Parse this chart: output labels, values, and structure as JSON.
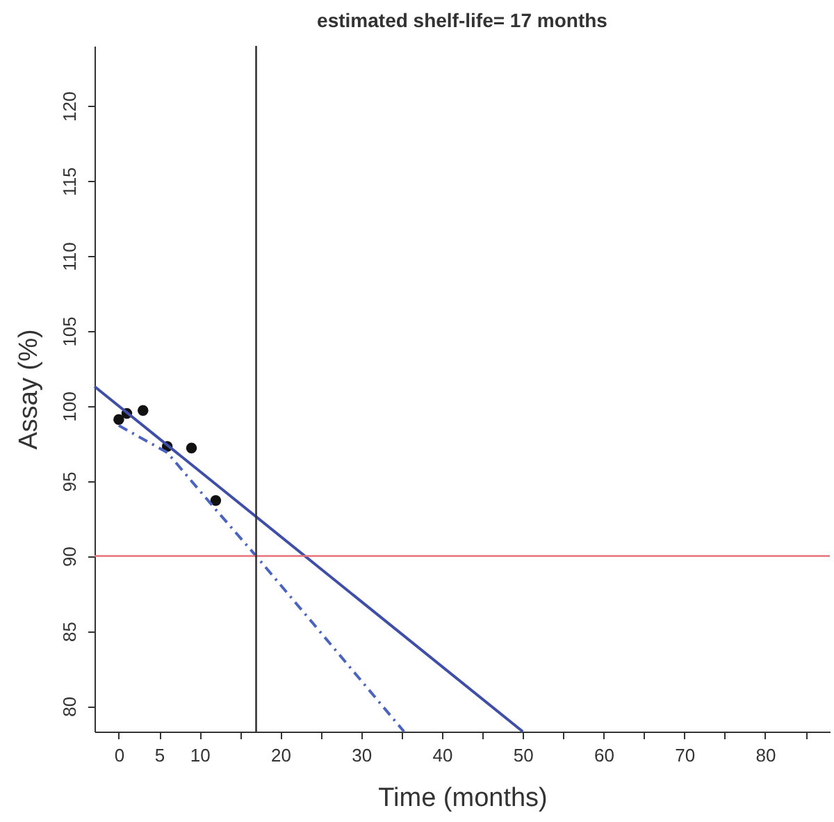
{
  "chart_data": {
    "type": "scatter",
    "title": "estimated shelf-life= 17 months",
    "xlabel": "Time (months)",
    "ylabel": "Assay (%)",
    "xlim": [
      -3,
      88
    ],
    "ylim": [
      78.3,
      124
    ],
    "xticks": [
      0,
      5,
      10,
      {
        "value": 15,
        "label": null
      },
      20,
      {
        "value": 25,
        "label": null
      },
      30,
      {
        "value": 35,
        "label": null
      },
      40,
      {
        "value": 45,
        "label": null
      },
      50,
      {
        "value": 55,
        "label": null
      },
      60,
      {
        "value": 65,
        "label": null
      },
      70,
      {
        "value": 75,
        "label": null
      },
      80,
      {
        "value": 85,
        "label": null
      }
    ],
    "yticks": [
      80,
      85,
      90,
      95,
      100,
      105,
      110,
      115,
      120
    ],
    "grid": false,
    "series": [
      {
        "color": "#111111",
        "marker": "circle",
        "x": [
          0,
          1,
          3,
          6,
          9,
          12
        ],
        "values": [
          99.1,
          99.5,
          99.7,
          97.3,
          97.2,
          93.7
        ]
      },
      {
        "type": "line",
        "color": "#3f4fa8",
        "line_style": "solid",
        "marker": "none",
        "x": [
          -3,
          50
        ],
        "values": [
          101.3,
          78.3
        ]
      },
      {
        "type": "line",
        "color": "#4a64c0",
        "line_style": "dashed",
        "marker": "none",
        "x": [
          0,
          6,
          12,
          17,
          25,
          35.3
        ],
        "values": [
          98.7,
          96.9,
          93.1,
          90,
          84.9,
          78.3
        ]
      }
    ],
    "ref_lines": [
      {
        "axis": "y",
        "value": 90,
        "color": "#e8707a"
      },
      {
        "axis": "x",
        "value": 17,
        "color": "#333333"
      }
    ]
  }
}
